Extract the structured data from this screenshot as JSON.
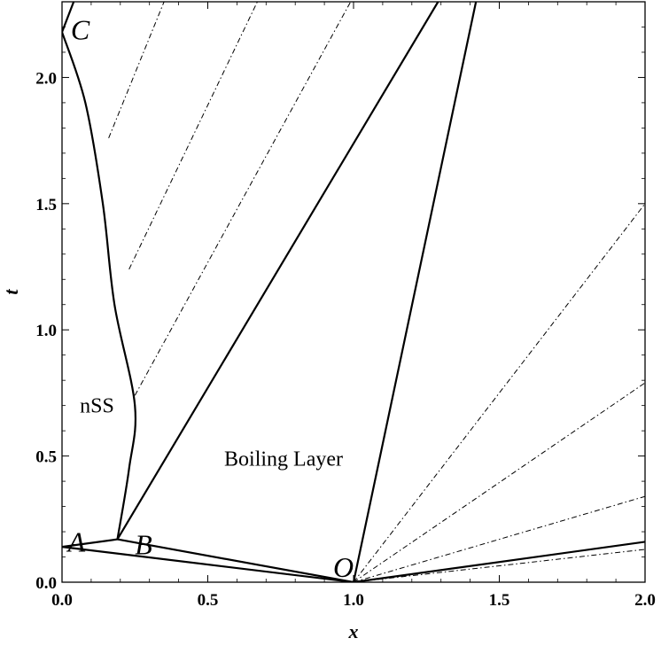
{
  "chart_data": {
    "type": "line",
    "title": "",
    "xlabel": "x",
    "ylabel": "t",
    "xlim": [
      0,
      2
    ],
    "ylim": [
      0,
      2.3
    ],
    "x_ticks": [
      "0.0",
      "0.5",
      "1.0",
      "1.5",
      "2.0"
    ],
    "x_tick_values": [
      0,
      0.5,
      1.0,
      1.5,
      2.0
    ],
    "y_ticks": [
      "0.0",
      "0.5",
      "1.0",
      "1.5",
      "2.0"
    ],
    "y_tick_values": [
      0,
      0.5,
      1.0,
      1.5,
      2.0
    ],
    "grid": false,
    "point_labels": [
      {
        "text": "A",
        "x": 0.02,
        "y": 0.16
      },
      {
        "text": "B",
        "x": 0.25,
        "y": 0.15
      },
      {
        "text": "C",
        "x": 0.03,
        "y": 2.19
      },
      {
        "text": "O",
        "x": 0.93,
        "y": 0.06
      }
    ],
    "region_labels": [
      {
        "text": "nSS",
        "x": 0.12,
        "y": 0.7
      },
      {
        "text": "Boiling Layer",
        "x": 0.76,
        "y": 0.49
      }
    ],
    "solid_curves": [
      {
        "points": [
          [
            0,
            0.14
          ],
          [
            1.0,
            0
          ]
        ]
      },
      {
        "points": [
          [
            0,
            0.14
          ],
          [
            0.19,
            0.17
          ]
        ]
      },
      {
        "points": [
          [
            0.19,
            0.17
          ],
          [
            1.0,
            0
          ]
        ]
      },
      {
        "points": [
          [
            0.19,
            0.17
          ],
          [
            1.29,
            2.3
          ]
        ]
      },
      {
        "points": [
          [
            1.0,
            0
          ],
          [
            1.42,
            2.3
          ]
        ]
      },
      {
        "points": [
          [
            1.0,
            0
          ],
          [
            2.0,
            0.16
          ]
        ]
      },
      {
        "points": [
          [
            0,
            2.18
          ],
          [
            0.04,
            2.3
          ]
        ]
      },
      {
        "points": [
          [
            0,
            2.18
          ],
          [
            0.08,
            1.9
          ],
          [
            0.14,
            1.5
          ],
          [
            0.18,
            1.1
          ],
          [
            0.25,
            0.7
          ],
          [
            0.23,
            0.45
          ],
          [
            0.19,
            0.17
          ]
        ],
        "smooth": true
      }
    ],
    "dashdot_lines": [
      {
        "points": [
          [
            0.14,
            0.12
          ],
          [
            1.0,
            0
          ]
        ]
      },
      {
        "points": [
          [
            0.16,
            1.76
          ],
          [
            0.35,
            2.3
          ]
        ]
      },
      {
        "points": [
          [
            0.23,
            1.24
          ],
          [
            0.67,
            2.3
          ]
        ]
      },
      {
        "points": [
          [
            0.25,
            0.74
          ],
          [
            0.99,
            2.3
          ]
        ]
      },
      {
        "points": [
          [
            1.0,
            0
          ],
          [
            2.0,
            1.5
          ]
        ]
      },
      {
        "points": [
          [
            1.0,
            0
          ],
          [
            2.0,
            0.79
          ]
        ]
      },
      {
        "points": [
          [
            1.0,
            0
          ],
          [
            2.0,
            0.34
          ]
        ]
      },
      {
        "points": [
          [
            1.0,
            0
          ],
          [
            2.0,
            0.13
          ]
        ]
      }
    ]
  }
}
